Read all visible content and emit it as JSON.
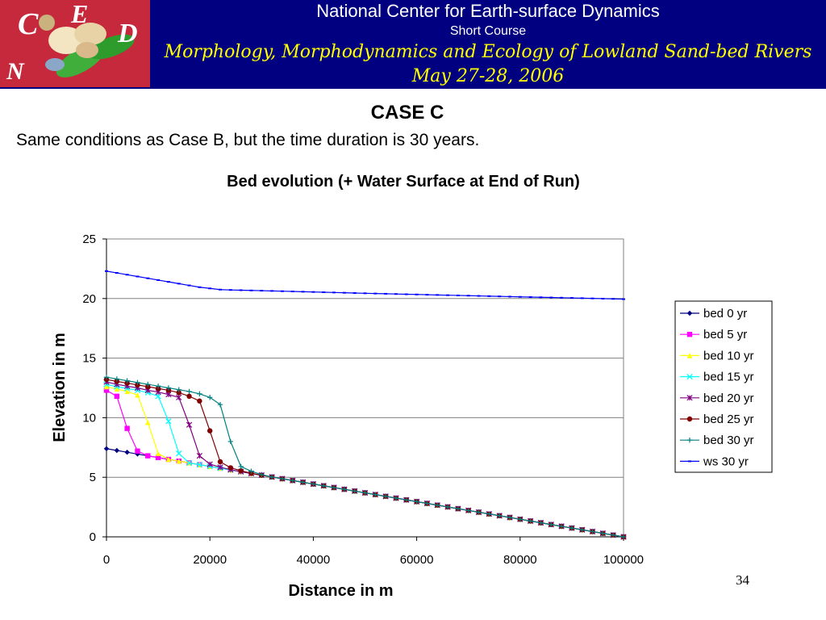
{
  "header": {
    "logo_letters": [
      "C",
      "E",
      "D",
      "N"
    ],
    "organization": "National Center for Earth-surface Dynamics",
    "subtitle": "Short Course",
    "course_title": "Morphology, Morphodynamics and Ecology of Lowland Sand-bed Rivers",
    "dates": "May 27-28, 2006"
  },
  "slide": {
    "heading": "CASE C",
    "description": "Same conditions as Case B, but the time duration is 30 years.",
    "page_number": "34"
  },
  "chart_data": {
    "type": "line",
    "title": "Bed evolution (+ Water Surface at End of Run)",
    "xlabel": "Distance in m",
    "ylabel": "Elevation in m",
    "xlim": [
      0,
      100000
    ],
    "ylim": [
      0,
      25
    ],
    "xticks": [
      "0",
      "20000",
      "40000",
      "60000",
      "80000",
      "100000"
    ],
    "yticks": [
      "0",
      "5",
      "10",
      "15",
      "20",
      "25"
    ],
    "grid": "horizontal",
    "legend_position": "right",
    "x": [
      0,
      2000,
      4000,
      6000,
      8000,
      10000,
      12000,
      14000,
      16000,
      18000,
      20000,
      22000,
      24000,
      26000,
      28000,
      30000,
      32000,
      34000,
      36000,
      38000,
      40000,
      42000,
      44000,
      46000,
      48000,
      50000,
      52000,
      54000,
      56000,
      58000,
      60000,
      62000,
      64000,
      66000,
      68000,
      70000,
      72000,
      74000,
      76000,
      78000,
      80000,
      82000,
      84000,
      86000,
      88000,
      90000,
      92000,
      94000,
      96000,
      98000,
      100000
    ],
    "series": [
      {
        "name": "bed 0 yr",
        "color": "#000080",
        "marker": "diamond",
        "profile": {
          "start": 7.4,
          "slope_end": 9500,
          "toe": 6.7,
          "knots": [
            [
              0,
              7.4
            ],
            [
              2000,
              7.25
            ],
            [
              4000,
              7.1
            ],
            [
              6000,
              6.95
            ],
            [
              8000,
              6.8
            ],
            [
              10000,
              6.65
            ]
          ]
        }
      },
      {
        "name": "bed 5 yr",
        "color": "#ff00ff",
        "marker": "square",
        "knots": [
          [
            0,
            12.3
          ],
          [
            2000,
            11.8
          ],
          [
            4000,
            9.1
          ],
          [
            6000,
            7.2
          ],
          [
            8000,
            6.8
          ],
          [
            10000,
            6.65
          ]
        ]
      },
      {
        "name": "bed 10 yr",
        "color": "#ffff00",
        "marker": "triangle",
        "knots": [
          [
            0,
            12.6
          ],
          [
            2000,
            12.4
          ],
          [
            4000,
            12.2
          ],
          [
            6000,
            11.9
          ],
          [
            8000,
            9.6
          ],
          [
            10000,
            7.0
          ],
          [
            12000,
            6.5
          ]
        ]
      },
      {
        "name": "bed 15 yr",
        "color": "#00ffff",
        "marker": "x",
        "knots": [
          [
            0,
            12.8
          ],
          [
            2000,
            12.6
          ],
          [
            4000,
            12.45
          ],
          [
            6000,
            12.3
          ],
          [
            8000,
            12.1
          ],
          [
            10000,
            11.8
          ],
          [
            12000,
            9.7
          ],
          [
            14000,
            7.0
          ],
          [
            16000,
            6.2
          ]
        ]
      },
      {
        "name": "bed 20 yr",
        "color": "#800080",
        "marker": "star",
        "knots": [
          [
            0,
            13.0
          ],
          [
            2000,
            12.8
          ],
          [
            4000,
            12.65
          ],
          [
            6000,
            12.5
          ],
          [
            8000,
            12.3
          ],
          [
            10000,
            12.15
          ],
          [
            12000,
            11.95
          ],
          [
            14000,
            11.7
          ],
          [
            16000,
            9.4
          ],
          [
            18000,
            6.8
          ],
          [
            20000,
            6.1
          ]
        ]
      },
      {
        "name": "bed 25 yr",
        "color": "#800000",
        "marker": "circle",
        "knots": [
          [
            0,
            13.2
          ],
          [
            2000,
            13.05
          ],
          [
            4000,
            12.9
          ],
          [
            6000,
            12.75
          ],
          [
            8000,
            12.6
          ],
          [
            10000,
            12.45
          ],
          [
            12000,
            12.3
          ],
          [
            14000,
            12.1
          ],
          [
            16000,
            11.8
          ],
          [
            18000,
            11.4
          ],
          [
            20000,
            8.9
          ],
          [
            22000,
            6.3
          ],
          [
            24000,
            5.8
          ]
        ]
      },
      {
        "name": "bed 30 yr",
        "color": "#008080",
        "marker": "plus",
        "knots": [
          [
            0,
            13.4
          ],
          [
            2000,
            13.25
          ],
          [
            4000,
            13.1
          ],
          [
            6000,
            12.95
          ],
          [
            8000,
            12.8
          ],
          [
            10000,
            12.65
          ],
          [
            12000,
            12.5
          ],
          [
            14000,
            12.35
          ],
          [
            16000,
            12.2
          ],
          [
            18000,
            12.0
          ],
          [
            20000,
            11.7
          ],
          [
            22000,
            11.1
          ],
          [
            24000,
            8.0
          ],
          [
            26000,
            5.9
          ]
        ]
      },
      {
        "name": "ws 30 yr",
        "color": "#0000ff",
        "marker": "dash",
        "knots": [
          [
            0,
            22.3
          ],
          [
            2000,
            22.15
          ],
          [
            4000,
            22.0
          ],
          [
            6000,
            21.85
          ],
          [
            8000,
            21.7
          ],
          [
            10000,
            21.55
          ],
          [
            12000,
            21.4
          ],
          [
            14000,
            21.25
          ],
          [
            16000,
            21.1
          ],
          [
            18000,
            20.95
          ],
          [
            20000,
            20.85
          ],
          [
            22000,
            20.75
          ],
          [
            24000,
            20.72
          ],
          [
            30000,
            20.66
          ],
          [
            40000,
            20.55
          ],
          [
            50000,
            20.44
          ],
          [
            60000,
            20.34
          ],
          [
            70000,
            20.24
          ],
          [
            80000,
            20.14
          ],
          [
            90000,
            20.05
          ],
          [
            100000,
            19.95
          ]
        ]
      }
    ],
    "shared_tail": {
      "from": 10000,
      "to": 100000,
      "start_value": 6.65,
      "end_value": 0.0
    }
  }
}
